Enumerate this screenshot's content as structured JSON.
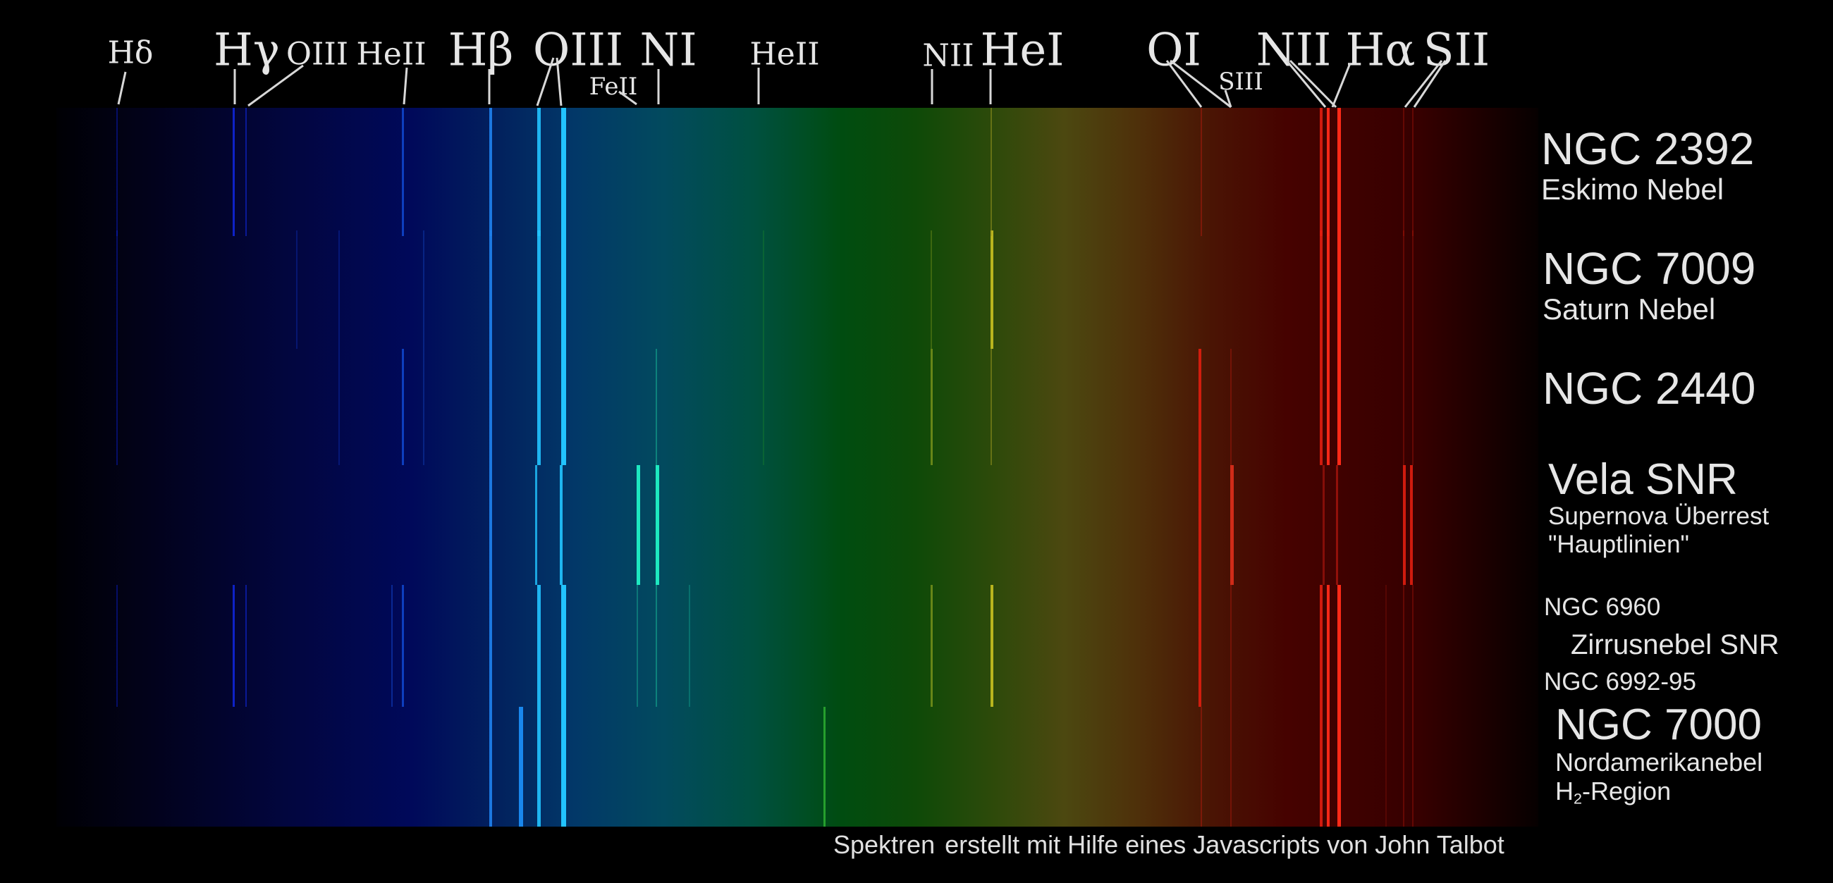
{
  "lines": [
    {
      "id": "hdelta",
      "label": "Hδ",
      "size": "small"
    },
    {
      "id": "hgamma",
      "label": "Hγ",
      "size": "large"
    },
    {
      "id": "oiii_a",
      "label": "OIII",
      "size": "small"
    },
    {
      "id": "heii_a",
      "label": "HeII",
      "size": "small"
    },
    {
      "id": "hbeta",
      "label": "Hβ",
      "size": "large"
    },
    {
      "id": "oiii_b",
      "label": "OIII",
      "size": "large"
    },
    {
      "id": "feii",
      "label": "FeII",
      "size": "tiny"
    },
    {
      "id": "ni",
      "label": "NI",
      "size": "large"
    },
    {
      "id": "heii_b",
      "label": "HeII",
      "size": "small"
    },
    {
      "id": "nii_a",
      "label": "NII",
      "size": "small"
    },
    {
      "id": "hei",
      "label": "HeI",
      "size": "large"
    },
    {
      "id": "oi",
      "label": "OI",
      "size": "large"
    },
    {
      "id": "siii",
      "label": "SIII",
      "size": "tiny"
    },
    {
      "id": "nii_b",
      "label": "NII",
      "size": "large"
    },
    {
      "id": "halpha",
      "label": "Hα",
      "size": "large"
    },
    {
      "id": "sii",
      "label": "SII",
      "size": "large"
    }
  ],
  "objects": [
    {
      "id": "ngc2392",
      "title": "NGC 2392",
      "subtitle": [
        "Eskimo Nebel"
      ]
    },
    {
      "id": "ngc7009",
      "title": "NGC 7009",
      "subtitle": [
        "Saturn Nebel"
      ]
    },
    {
      "id": "ngc2440",
      "title": "NGC 2440",
      "subtitle": []
    },
    {
      "id": "vela",
      "title": "Vela SNR",
      "subtitle": [
        "Supernova Überrest",
        "\"Hauptlinien\""
      ]
    },
    {
      "id": "cirrus",
      "title": "",
      "subtitle": [
        "NGC 6960",
        "Zirrusnebel SNR",
        "NGC 6992-95"
      ]
    },
    {
      "id": "ngc7000",
      "title": "NGC 7000",
      "subtitle": [
        "Nordamerikanebel",
        "H2-Region"
      ]
    }
  ],
  "colors": {
    "violet": "#05051a",
    "blue": "#000a4a",
    "cyan_teal": "#006070",
    "green": "#005008",
    "yellow": "#5a5018",
    "red": "#4a0000",
    "line_blue": "#1e7de8",
    "line_cyan": "#22c4ff",
    "line_teal": "#1ee8c0",
    "line_green": "#2aa830",
    "line_yellow": "#c8c020",
    "line_red": "#e01e10"
  },
  "credit": {
    "word1": "Spektren",
    "rest": "erstellt mit Hilfe eines Javascripts von John Talbot"
  }
}
